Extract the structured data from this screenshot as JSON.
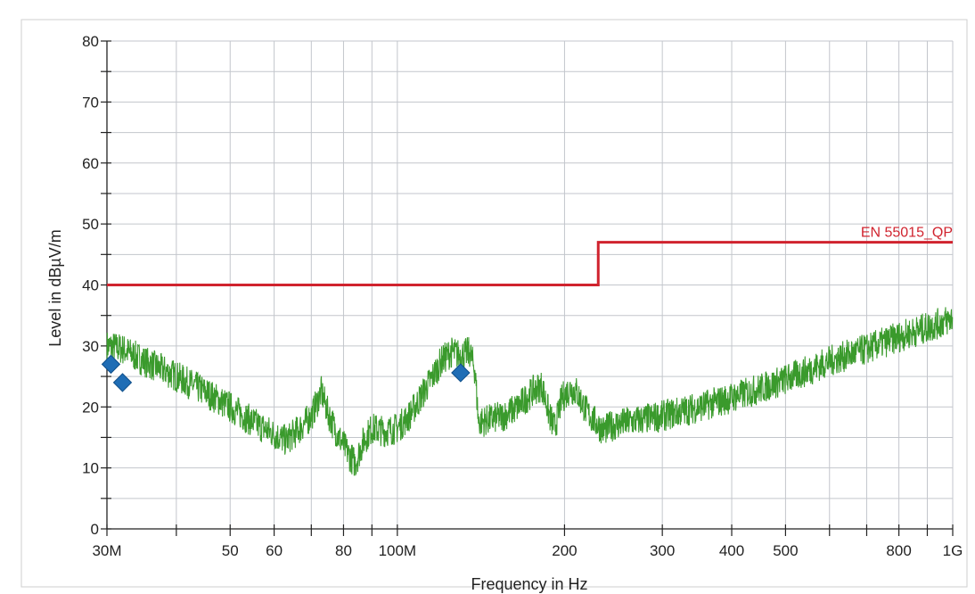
{
  "chart_data": {
    "type": "line",
    "xlabel": "Frequency in Hz",
    "ylabel": "Level in dBµV/m",
    "x_scale": "log",
    "xlim": [
      30000000,
      1000000000
    ],
    "ylim": [
      0,
      80
    ],
    "grid": true,
    "x_ticks": [
      {
        "value": 30000000,
        "label": "30M"
      },
      {
        "value": 40000000,
        "label": ""
      },
      {
        "value": 50000000,
        "label": "50"
      },
      {
        "value": 60000000,
        "label": "60"
      },
      {
        "value": 70000000,
        "label": ""
      },
      {
        "value": 80000000,
        "label": "80"
      },
      {
        "value": 90000000,
        "label": ""
      },
      {
        "value": 100000000,
        "label": "100M"
      },
      {
        "value": 200000000,
        "label": "200"
      },
      {
        "value": 300000000,
        "label": "300"
      },
      {
        "value": 400000000,
        "label": "400"
      },
      {
        "value": 500000000,
        "label": "500"
      },
      {
        "value": 600000000,
        "label": ""
      },
      {
        "value": 700000000,
        "label": ""
      },
      {
        "value": 800000000,
        "label": "800"
      },
      {
        "value": 900000000,
        "label": ""
      },
      {
        "value": 1000000000,
        "label": "1G"
      }
    ],
    "y_ticks": [
      {
        "value": 0,
        "label": "0"
      },
      {
        "value": 10,
        "label": "10"
      },
      {
        "value": 20,
        "label": "20"
      },
      {
        "value": 30,
        "label": "30"
      },
      {
        "value": 40,
        "label": "40"
      },
      {
        "value": 50,
        "label": "50"
      },
      {
        "value": 60,
        "label": "60"
      },
      {
        "value": 70,
        "label": "70"
      },
      {
        "value": 80,
        "label": "80"
      }
    ],
    "limit_line": {
      "name": "EN 55015_QP",
      "color": "#d0232e",
      "points": [
        [
          30000000,
          40
        ],
        [
          230000000,
          40
        ],
        [
          230000000,
          47
        ],
        [
          1000000000,
          47
        ]
      ]
    },
    "trace": {
      "color": "#3a9a2c",
      "noise_amplitude_db": 2.6,
      "points": [
        [
          30000000,
          30
        ],
        [
          32000000,
          29.5
        ],
        [
          35000000,
          27.5
        ],
        [
          40000000,
          25
        ],
        [
          45000000,
          22.5
        ],
        [
          50000000,
          20
        ],
        [
          55000000,
          17.5
        ],
        [
          60000000,
          15.5
        ],
        [
          63000000,
          14.5
        ],
        [
          66000000,
          16
        ],
        [
          70000000,
          18.5
        ],
        [
          73000000,
          22.5
        ],
        [
          75000000,
          19
        ],
        [
          78000000,
          15.5
        ],
        [
          82000000,
          12
        ],
        [
          84000000,
          10.8
        ],
        [
          87000000,
          14.5
        ],
        [
          90000000,
          16.5
        ],
        [
          95000000,
          16
        ],
        [
          100000000,
          16.5
        ],
        [
          105000000,
          18.5
        ],
        [
          110000000,
          21.5
        ],
        [
          115000000,
          24.5
        ],
        [
          120000000,
          27.5
        ],
        [
          125000000,
          29
        ],
        [
          130000000,
          28.5
        ],
        [
          135000000,
          29
        ],
        [
          138000000,
          26
        ],
        [
          140000000,
          17.5
        ],
        [
          145000000,
          17.8
        ],
        [
          155000000,
          18.5
        ],
        [
          165000000,
          20
        ],
        [
          175000000,
          22.5
        ],
        [
          182000000,
          23.5
        ],
        [
          188000000,
          18.5
        ],
        [
          192000000,
          16.5
        ],
        [
          198000000,
          21.5
        ],
        [
          205000000,
          23
        ],
        [
          210000000,
          22.5
        ],
        [
          220000000,
          19
        ],
        [
          230000000,
          17
        ],
        [
          235000000,
          16.2
        ],
        [
          245000000,
          17
        ],
        [
          260000000,
          17.5
        ],
        [
          300000000,
          18.5
        ],
        [
          350000000,
          20
        ],
        [
          400000000,
          21.5
        ],
        [
          450000000,
          23
        ],
        [
          500000000,
          24.5
        ],
        [
          550000000,
          26
        ],
        [
          600000000,
          27.5
        ],
        [
          700000000,
          29.5
        ],
        [
          800000000,
          31.5
        ],
        [
          900000000,
          33
        ],
        [
          1000000000,
          34.5
        ]
      ]
    },
    "markers": {
      "color": "#1f6db5",
      "points": [
        [
          30500000,
          27
        ],
        [
          32000000,
          24
        ],
        [
          130000000,
          25.6
        ]
      ]
    }
  }
}
